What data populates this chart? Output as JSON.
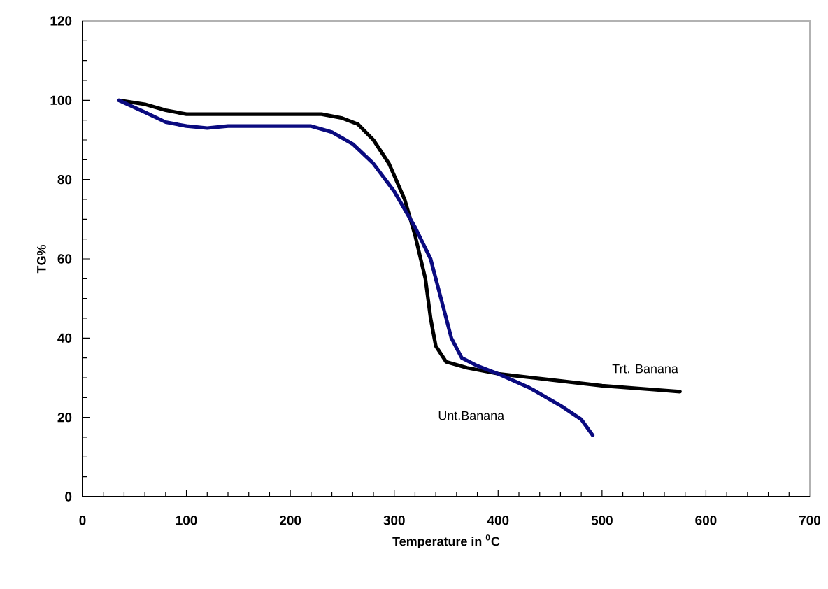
{
  "chart_data": {
    "type": "line",
    "xlabel": "Temperature in $^{0}$C",
    "ylabel": "TG%",
    "xlim": [
      0,
      700
    ],
    "ylim": [
      0,
      120
    ],
    "xticks": [
      0,
      100,
      200,
      300,
      400,
      500,
      600,
      700
    ],
    "yticks": [
      0,
      20,
      40,
      60,
      80,
      100,
      120
    ],
    "grid": false,
    "legend": false,
    "marker": "none",
    "line_style": "solid",
    "series": [
      {
        "name": "Trt. Banana",
        "color": "#000000",
        "x": [
          35,
          60,
          80,
          100,
          150,
          200,
          230,
          250,
          265,
          280,
          295,
          310,
          320,
          330,
          335,
          340,
          350,
          370,
          400,
          450,
          500,
          550,
          575
        ],
        "values": [
          100,
          99,
          97.5,
          96.5,
          96.5,
          96.5,
          96.5,
          95.5,
          94,
          90,
          84,
          75,
          66,
          55,
          45,
          38,
          34,
          32.5,
          31,
          29.5,
          28,
          27,
          26.5
        ]
      },
      {
        "name": "Unt.Banana",
        "color": "#0a0a80",
        "x": [
          35,
          60,
          80,
          100,
          120,
          140,
          180,
          220,
          240,
          260,
          280,
          300,
          320,
          335,
          345,
          355,
          365,
          380,
          400,
          430,
          460,
          480,
          491
        ],
        "values": [
          100,
          97,
          94.5,
          93.5,
          93,
          93.5,
          93.5,
          93.5,
          92,
          89,
          84,
          77,
          68,
          60,
          50,
          40,
          35,
          33,
          31,
          27.5,
          23,
          19.5,
          15.5
        ]
      }
    ]
  }
}
